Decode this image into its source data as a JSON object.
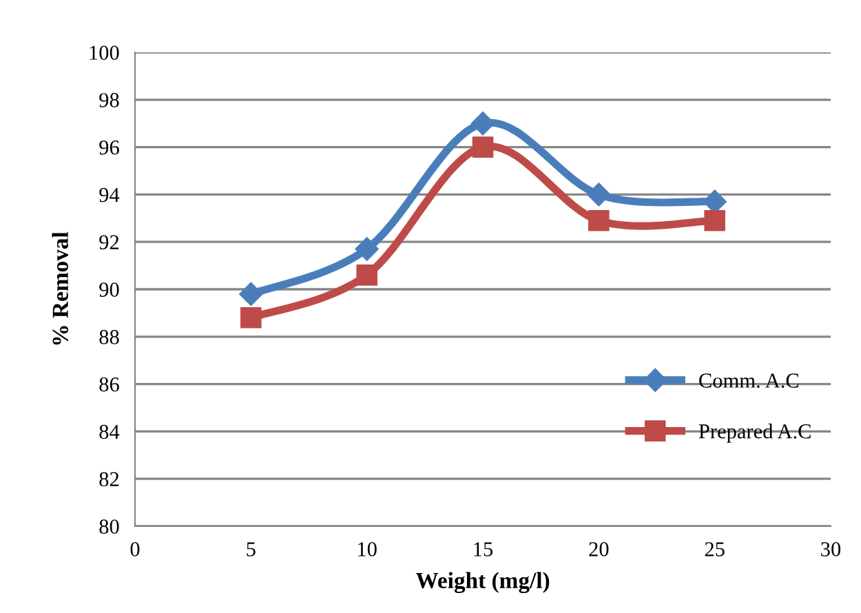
{
  "chart_data": {
    "type": "line",
    "xlabel": "Weight (mg/l)",
    "ylabel": "% Removal",
    "x": [
      5,
      10,
      15,
      20,
      25
    ],
    "series": [
      {
        "name": "Comm. A.C",
        "color": "#4a7ebb",
        "marker": "diamond",
        "values": [
          89.8,
          91.7,
          97.0,
          94.0,
          93.7
        ]
      },
      {
        "name": "Prepared A.C",
        "color": "#be4b48",
        "marker": "square",
        "values": [
          88.8,
          90.6,
          96.0,
          92.9,
          92.9
        ]
      }
    ],
    "xlim": [
      0,
      30
    ],
    "xticks": [
      0,
      5,
      10,
      15,
      20,
      25,
      30
    ],
    "ylim": [
      80,
      100
    ],
    "yticks": [
      80,
      82,
      84,
      86,
      88,
      90,
      92,
      94,
      96,
      98,
      100
    ],
    "grid": "y",
    "legend": "right",
    "line_style": "solid"
  }
}
